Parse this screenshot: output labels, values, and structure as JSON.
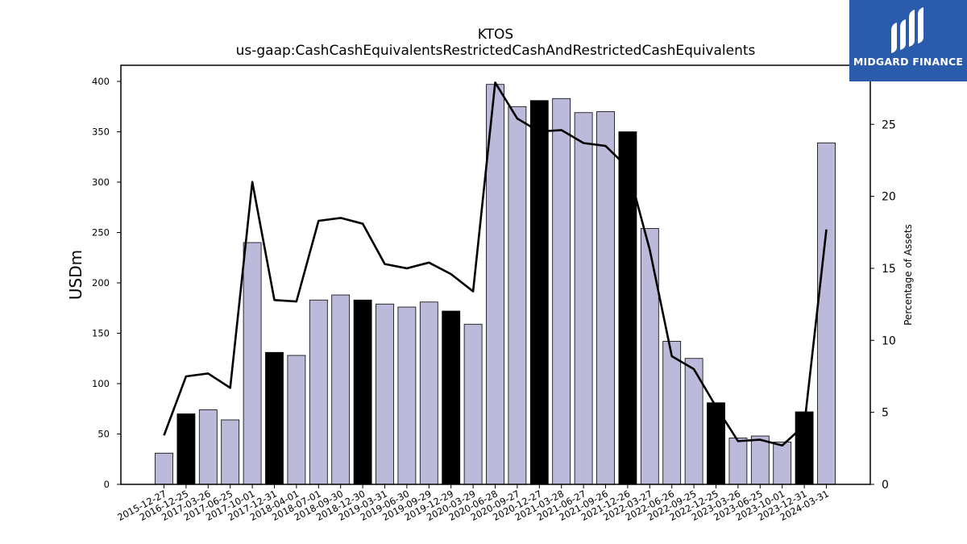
{
  "logo": {
    "text": "MIDGARD FINANCE",
    "icon": "midgard-logo-icon",
    "background": "#2b5cab"
  },
  "chart_data": {
    "type": "bar",
    "title": "KTOS",
    "subtitle": "us-gaap:CashCashEquivalentsRestrictedCashAndRestrictedCashEquivalents",
    "ylabel": "USDm",
    "y2label": "Percentage of Assets",
    "ylim": [
      0,
      416
    ],
    "y2lim": [
      0,
      29.1
    ],
    "yticks": [
      0,
      50,
      100,
      150,
      200,
      250,
      300,
      350,
      400
    ],
    "y2ticks": [
      0,
      5,
      10,
      15,
      20,
      25
    ],
    "categories": [
      "2015-12-27",
      "2016-12-25",
      "2017-03-26",
      "2017-06-25",
      "2017-10-01",
      "2017-12-31",
      "2018-04-01",
      "2018-07-01",
      "2018-09-30",
      "2018-12-30",
      "2019-03-31",
      "2019-06-30",
      "2019-09-29",
      "2019-12-29",
      "2020-03-29",
      "2020-06-28",
      "2020-09-27",
      "2020-12-27",
      "2021-03-28",
      "2021-06-27",
      "2021-09-26",
      "2021-12-26",
      "2022-03-27",
      "2022-06-26",
      "2022-09-25",
      "2022-12-25",
      "2023-03-26",
      "2023-06-25",
      "2023-10-01",
      "2023-12-31",
      "2024-03-31"
    ],
    "series": [
      {
        "type": "bar",
        "values": [
          31,
          70,
          74,
          64,
          240,
          131,
          128,
          183,
          188,
          183,
          179,
          176,
          181,
          172,
          159,
          397,
          375,
          381,
          383,
          369,
          370,
          350,
          254,
          142,
          125,
          81,
          46,
          48,
          42,
          72,
          339
        ]
      },
      {
        "type": "line",
        "axis": "right",
        "values": [
          3.4,
          7.5,
          7.7,
          6.7,
          21.0,
          12.8,
          12.7,
          18.3,
          18.5,
          18.1,
          15.3,
          15.0,
          15.4,
          14.6,
          13.4,
          27.9,
          25.4,
          24.5,
          24.6,
          23.7,
          23.5,
          22.0,
          16.3,
          8.9,
          8.0,
          5.4,
          3.0,
          3.1,
          2.7,
          4.1,
          17.7
        ]
      }
    ],
    "year_end_highlight": [
      false,
      true,
      false,
      false,
      false,
      true,
      false,
      false,
      false,
      true,
      false,
      false,
      false,
      true,
      false,
      false,
      false,
      true,
      false,
      false,
      false,
      true,
      false,
      false,
      false,
      true,
      false,
      false,
      false,
      true,
      false
    ],
    "colors": {
      "bar": "#bcbadb",
      "bar_highlight": "#000000",
      "line": "#000000"
    }
  }
}
